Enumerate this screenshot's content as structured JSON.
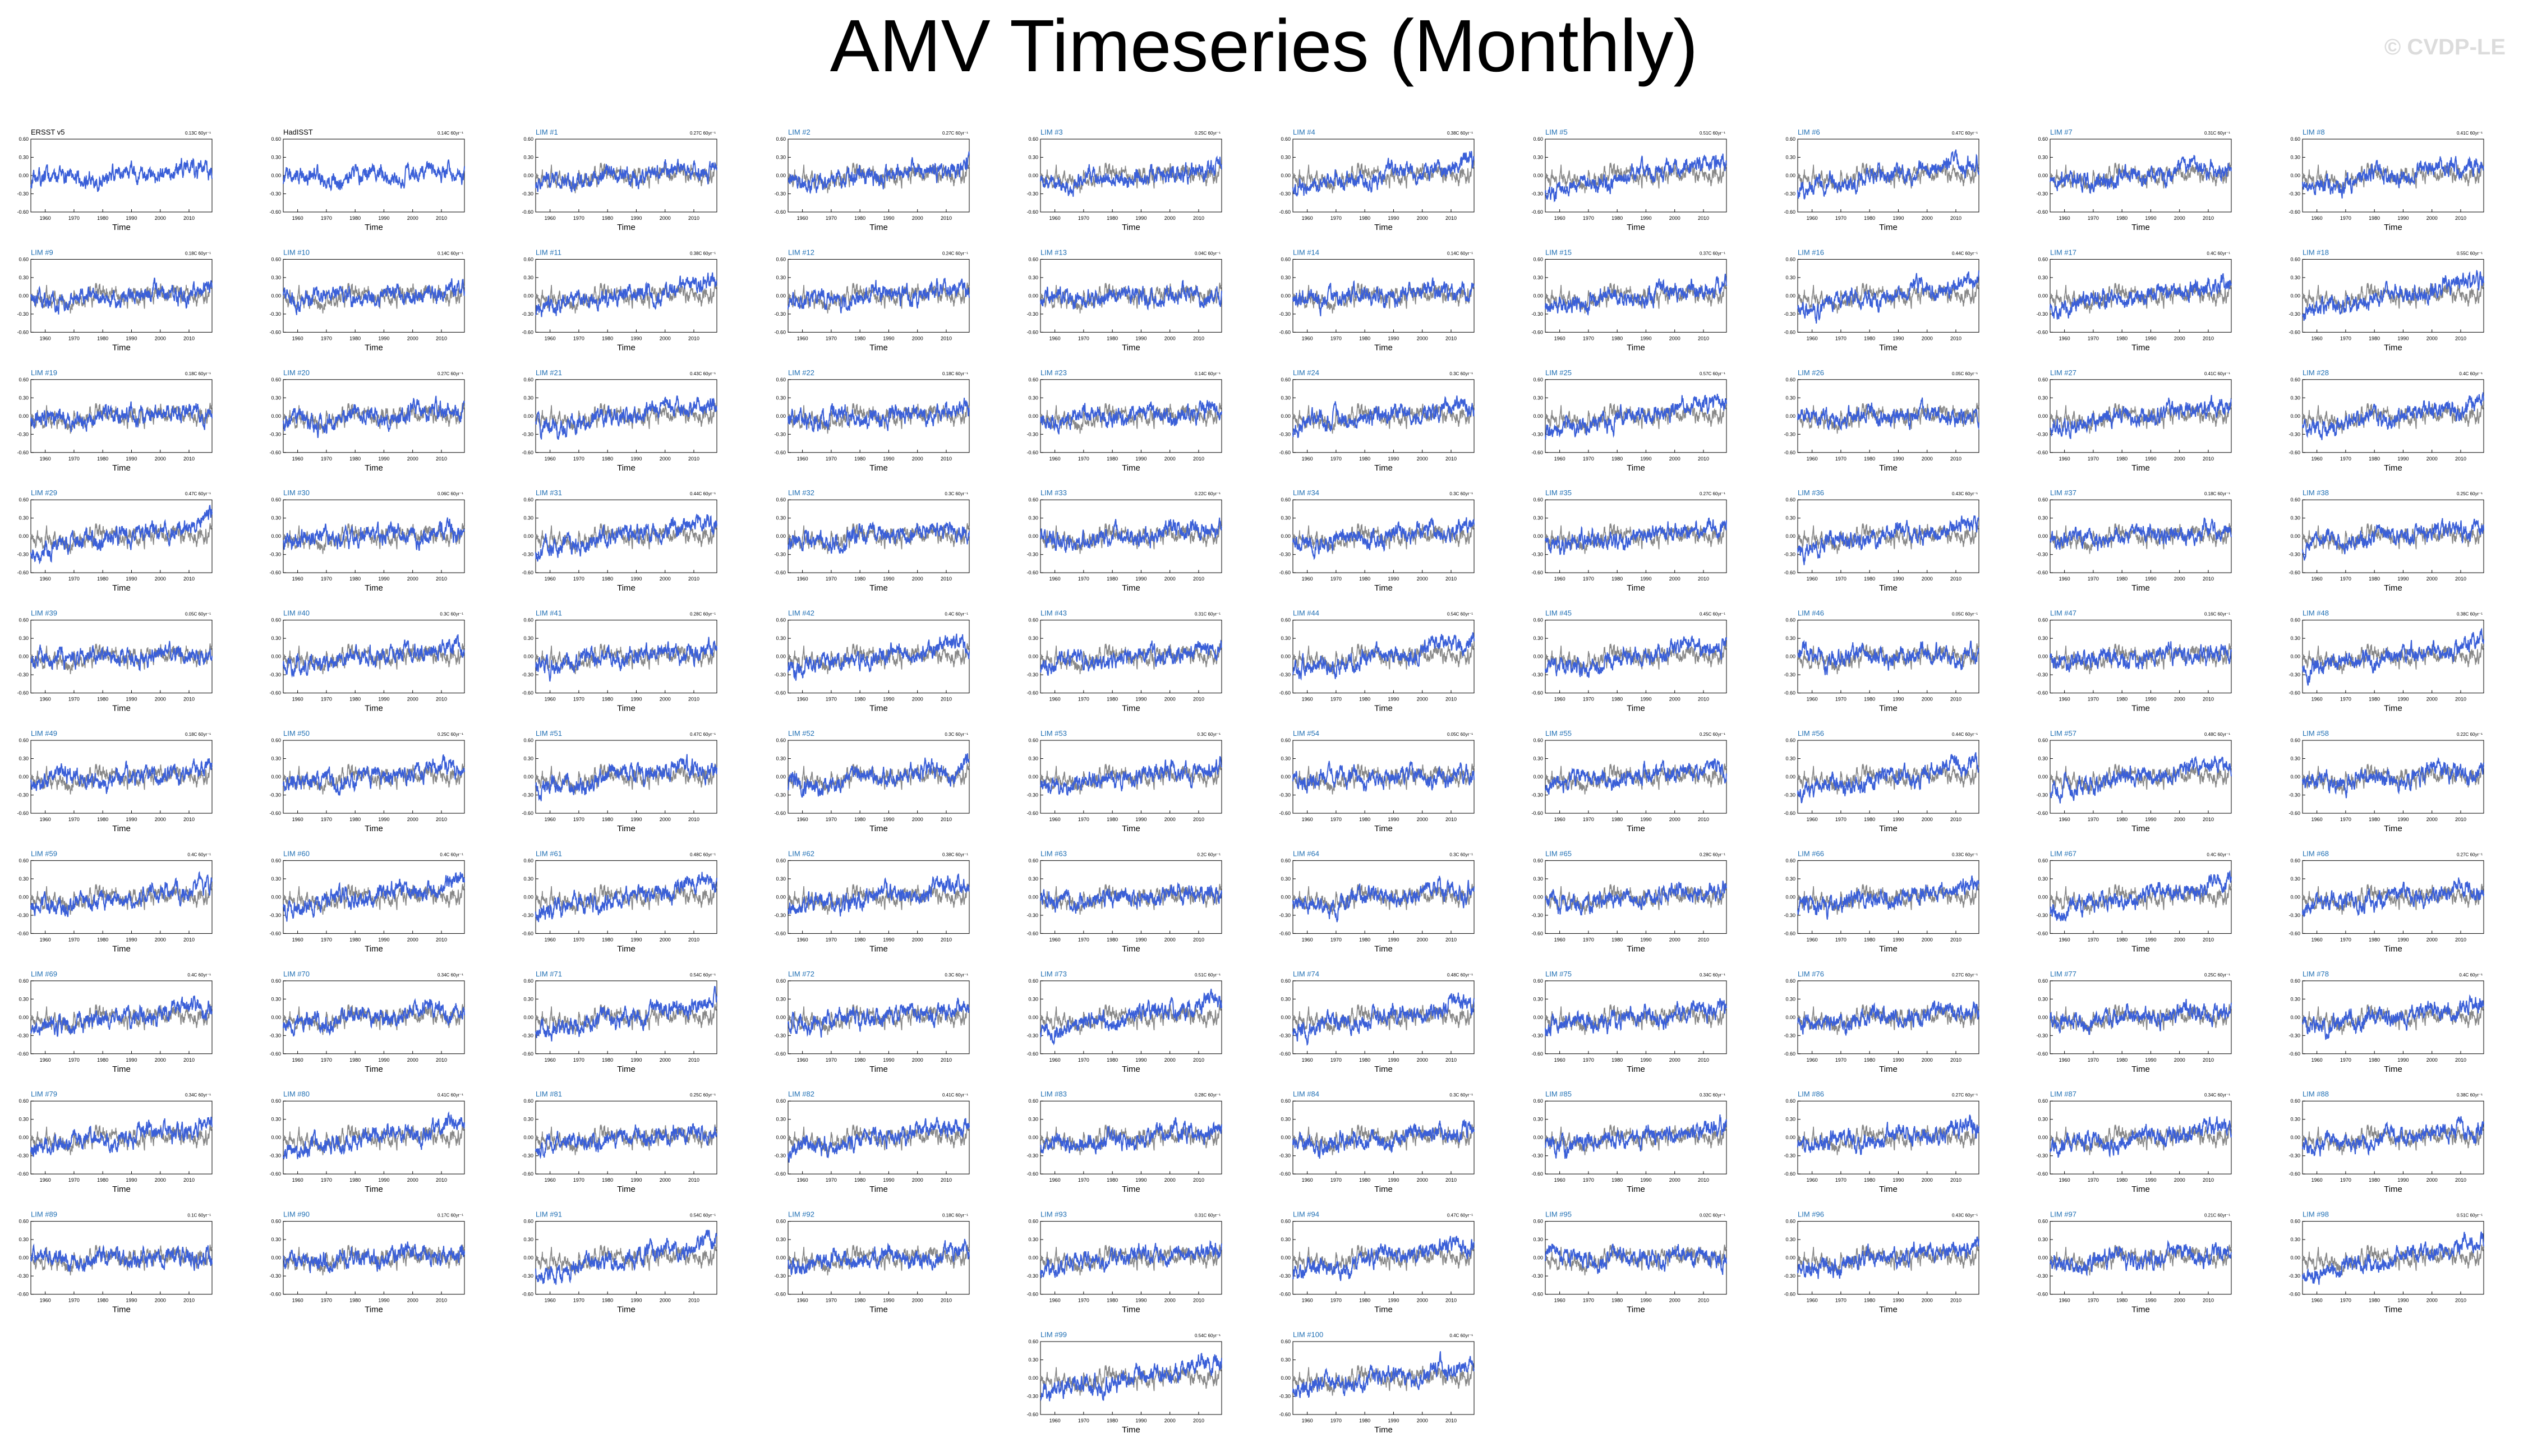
{
  "title": "AMV Timeseries (Monthly)",
  "watermark": "© CVDP-LE",
  "colors": {
    "observed": "#888888",
    "simulated": "#3a5fd8",
    "obs_title": "#000000",
    "member_title": "#1f6fb4"
  },
  "chart_data": {
    "type": "line",
    "xlabel": "Time",
    "xlim": [
      1955,
      2018
    ],
    "ylim": [
      -0.6,
      0.6
    ],
    "x_ticks": [
      1960,
      1970,
      1980,
      1990,
      2000,
      2010
    ],
    "y_ticks": [
      "0.60",
      "0.30",
      "0.00",
      "-0.30",
      "-0.60"
    ],
    "panels": [
      {
        "title": "ERSST v5",
        "trend": "0.13C 60yr⁻¹"
      },
      {
        "title": "HadISST",
        "trend": "0.14C 60yr⁻¹"
      },
      {
        "title": "LIM #1",
        "trend": "0.27C 60yr⁻¹"
      },
      {
        "title": "LIM #2",
        "trend": "0.27C 60yr⁻¹"
      },
      {
        "title": "LIM #3",
        "trend": "0.25C 60yr⁻¹"
      },
      {
        "title": "LIM #4",
        "trend": "0.38C 60yr⁻¹"
      },
      {
        "title": "LIM #5",
        "trend": "0.51C 60yr⁻¹"
      },
      {
        "title": "LIM #6",
        "trend": "0.47C 60yr⁻¹"
      },
      {
        "title": "LIM #7",
        "trend": "0.31C 60yr⁻¹"
      },
      {
        "title": "LIM #8",
        "trend": "0.41C 60yr⁻¹"
      },
      {
        "title": "LIM #9",
        "trend": "0.18C 60yr⁻¹"
      },
      {
        "title": "LIM #10",
        "trend": "0.14C 60yr⁻¹"
      },
      {
        "title": "LIM #11",
        "trend": "0.38C 60yr⁻¹"
      },
      {
        "title": "LIM #12",
        "trend": "0.24C 60yr⁻¹"
      },
      {
        "title": "LIM #13",
        "trend": "0.04C 60yr⁻¹"
      },
      {
        "title": "LIM #14",
        "trend": "0.14C 60yr⁻¹"
      },
      {
        "title": "LIM #15",
        "trend": "0.37C 60yr⁻¹"
      },
      {
        "title": "LIM #16",
        "trend": "0.44C 60yr⁻¹"
      },
      {
        "title": "LIM #17",
        "trend": "0.4C 60yr⁻¹"
      },
      {
        "title": "LIM #18",
        "trend": "0.55C 60yr⁻¹"
      },
      {
        "title": "LIM #19",
        "trend": "0.18C 60yr⁻¹"
      },
      {
        "title": "LIM #20",
        "trend": "0.27C 60yr⁻¹"
      },
      {
        "title": "LIM #21",
        "trend": "0.43C 60yr⁻¹"
      },
      {
        "title": "LIM #22",
        "trend": "0.18C 60yr⁻¹"
      },
      {
        "title": "LIM #23",
        "trend": "0.14C 60yr⁻¹"
      },
      {
        "title": "LIM #24",
        "trend": "0.3C 60yr⁻¹"
      },
      {
        "title": "LIM #25",
        "trend": "0.57C 60yr⁻¹"
      },
      {
        "title": "LIM #26",
        "trend": "0.05C 60yr⁻¹"
      },
      {
        "title": "LIM #27",
        "trend": "0.41C 60yr⁻¹"
      },
      {
        "title": "LIM #28",
        "trend": "0.4C 60yr⁻¹"
      },
      {
        "title": "LIM #29",
        "trend": "0.47C 60yr⁻¹"
      },
      {
        "title": "LIM #30",
        "trend": "0.06C 60yr⁻¹"
      },
      {
        "title": "LIM #31",
        "trend": "0.44C 60yr⁻¹"
      },
      {
        "title": "LIM #32",
        "trend": "0.3C 60yr⁻¹"
      },
      {
        "title": "LIM #33",
        "trend": "0.22C 60yr⁻¹"
      },
      {
        "title": "LIM #34",
        "trend": "0.3C 60yr⁻¹"
      },
      {
        "title": "LIM #35",
        "trend": "0.27C 60yr⁻¹"
      },
      {
        "title": "LIM #36",
        "trend": "0.43C 60yr⁻¹"
      },
      {
        "title": "LIM #37",
        "trend": "0.18C 60yr⁻¹"
      },
      {
        "title": "LIM #38",
        "trend": "0.25C 60yr⁻¹"
      },
      {
        "title": "LIM #39",
        "trend": "0.05C 60yr⁻¹"
      },
      {
        "title": "LIM #40",
        "trend": "0.3C 60yr⁻¹"
      },
      {
        "title": "LIM #41",
        "trend": "0.28C 60yr⁻¹"
      },
      {
        "title": "LIM #42",
        "trend": "0.4C 60yr⁻¹"
      },
      {
        "title": "LIM #43",
        "trend": "0.31C 60yr⁻¹"
      },
      {
        "title": "LIM #44",
        "trend": "0.54C 60yr⁻¹"
      },
      {
        "title": "LIM #45",
        "trend": "0.45C 60yr⁻¹"
      },
      {
        "title": "LIM #46",
        "trend": "0.05C 60yr⁻¹"
      },
      {
        "title": "LIM #47",
        "trend": "0.16C 60yr⁻¹"
      },
      {
        "title": "LIM #48",
        "trend": "0.38C 60yr⁻¹"
      },
      {
        "title": "LIM #49",
        "trend": "0.18C 60yr⁻¹"
      },
      {
        "title": "LIM #50",
        "trend": "0.25C 60yr⁻¹"
      },
      {
        "title": "LIM #51",
        "trend": "0.47C 60yr⁻¹"
      },
      {
        "title": "LIM #52",
        "trend": "0.3C 60yr⁻¹"
      },
      {
        "title": "LIM #53",
        "trend": "0.3C 60yr⁻¹"
      },
      {
        "title": "LIM #54",
        "trend": "0.05C 60yr⁻¹"
      },
      {
        "title": "LIM #55",
        "trend": "0.25C 60yr⁻¹"
      },
      {
        "title": "LIM #56",
        "trend": "0.44C 60yr⁻¹"
      },
      {
        "title": "LIM #57",
        "trend": "0.48C 60yr⁻¹"
      },
      {
        "title": "LIM #58",
        "trend": "0.22C 60yr⁻¹"
      },
      {
        "title": "LIM #59",
        "trend": "0.4C 60yr⁻¹"
      },
      {
        "title": "LIM #60",
        "trend": "0.4C 60yr⁻¹"
      },
      {
        "title": "LIM #61",
        "trend": "0.48C 60yr⁻¹"
      },
      {
        "title": "LIM #62",
        "trend": "0.38C 60yr⁻¹"
      },
      {
        "title": "LIM #63",
        "trend": "0.2C 60yr⁻¹"
      },
      {
        "title": "LIM #64",
        "trend": "0.3C 60yr⁻¹"
      },
      {
        "title": "LIM #65",
        "trend": "0.28C 60yr⁻¹"
      },
      {
        "title": "LIM #66",
        "trend": "0.33C 60yr⁻¹"
      },
      {
        "title": "LIM #67",
        "trend": "0.4C 60yr⁻¹"
      },
      {
        "title": "LIM #68",
        "trend": "0.27C 60yr⁻¹"
      },
      {
        "title": "LIM #69",
        "trend": "0.4C 60yr⁻¹"
      },
      {
        "title": "LIM #70",
        "trend": "0.34C 60yr⁻¹"
      },
      {
        "title": "LIM #71",
        "trend": "0.54C 60yr⁻¹"
      },
      {
        "title": "LIM #72",
        "trend": "0.3C 60yr⁻¹"
      },
      {
        "title": "LIM #73",
        "trend": "0.51C 60yr⁻¹"
      },
      {
        "title": "LIM #74",
        "trend": "0.48C 60yr⁻¹"
      },
      {
        "title": "LIM #75",
        "trend": "0.34C 60yr⁻¹"
      },
      {
        "title": "LIM #76",
        "trend": "0.27C 60yr⁻¹"
      },
      {
        "title": "LIM #77",
        "trend": "0.25C 60yr⁻¹"
      },
      {
        "title": "LIM #78",
        "trend": "0.4C 60yr⁻¹"
      },
      {
        "title": "LIM #79",
        "trend": "0.34C 60yr⁻¹"
      },
      {
        "title": "LIM #80",
        "trend": "0.41C 60yr⁻¹"
      },
      {
        "title": "LIM #81",
        "trend": "0.25C 60yr⁻¹"
      },
      {
        "title": "LIM #82",
        "trend": "0.41C 60yr⁻¹"
      },
      {
        "title": "LIM #83",
        "trend": "0.28C 60yr⁻¹"
      },
      {
        "title": "LIM #84",
        "trend": "0.3C 60yr⁻¹"
      },
      {
        "title": "LIM #85",
        "trend": "0.33C 60yr⁻¹"
      },
      {
        "title": "LIM #86",
        "trend": "0.27C 60yr⁻¹"
      },
      {
        "title": "LIM #87",
        "trend": "0.34C 60yr⁻¹"
      },
      {
        "title": "LIM #88",
        "trend": "0.38C 60yr⁻¹"
      },
      {
        "title": "LIM #89",
        "trend": "0.1C 60yr⁻¹"
      },
      {
        "title": "LIM #90",
        "trend": "0.17C 60yr⁻¹"
      },
      {
        "title": "LIM #91",
        "trend": "0.54C 60yr⁻¹"
      },
      {
        "title": "LIM #92",
        "trend": "0.18C 60yr⁻¹"
      },
      {
        "title": "LIM #93",
        "trend": "0.31C 60yr⁻¹"
      },
      {
        "title": "LIM #94",
        "trend": "0.47C 60yr⁻¹"
      },
      {
        "title": "LIM #95",
        "trend": "0.02C 60yr⁻¹"
      },
      {
        "title": "LIM #96",
        "trend": "0.43C 60yr⁻¹"
      },
      {
        "title": "LIM #97",
        "trend": "0.21C 60yr⁻¹"
      },
      {
        "title": "LIM #98",
        "trend": "0.51C 60yr⁻¹"
      },
      {
        "title": "LIM #99",
        "trend": "0.54C 60yr⁻¹"
      },
      {
        "title": "LIM #100",
        "trend": "0.4C 60yr⁻¹"
      }
    ]
  }
}
